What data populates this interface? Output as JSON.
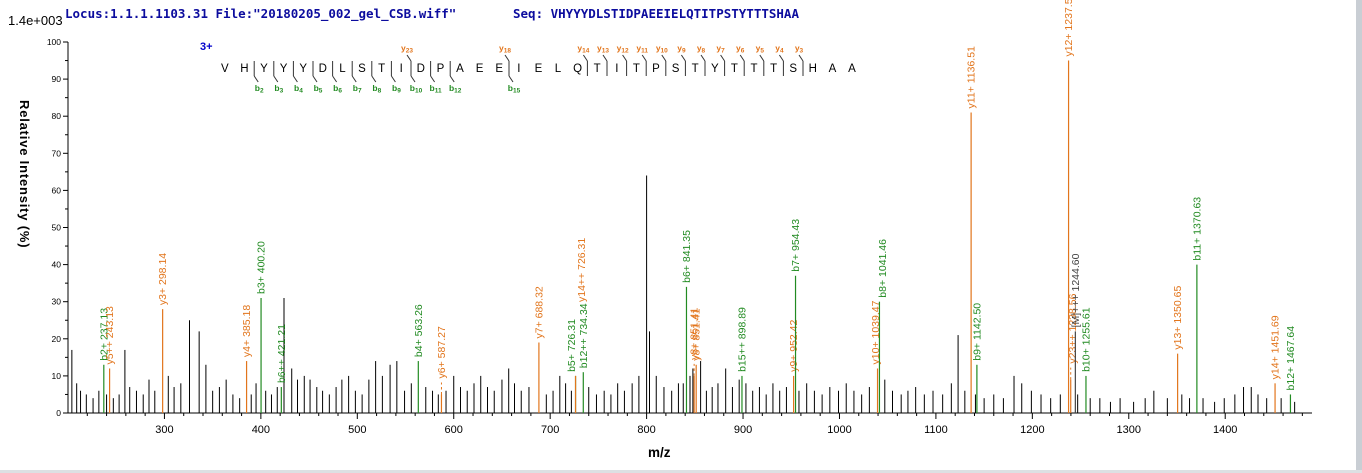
{
  "header": {
    "locus_file": "Locus:1.1.1.1103.31 File:\"20180205_002_gel_CSB.wiff\"",
    "seq_label": "Seq: VHYYYDLSTIDPAEEIELQTITPSTYTTTSHAA"
  },
  "y_axis": {
    "title": "Relative  Intensity  (%)",
    "max_label": "1.4e+003"
  },
  "x_axis": {
    "title": "m/z"
  },
  "colors": {
    "y_ion": "#e2751c",
    "b_ion": "#228b22",
    "m_ion": "#444444",
    "header_blue": "#0c0c9e",
    "charge_blue": "#0000cc",
    "axis": "#000000",
    "unlabeled_peak": "#000000"
  },
  "sequence": {
    "residues": "VHYYYDLSTIDPAEEIELQTITPSTYTTTSHAA",
    "precursor_charge": "3+",
    "y_ticks": [
      {
        "n": 23,
        "after": 10
      },
      {
        "n": 18,
        "after": 15
      },
      {
        "n": 14,
        "after": 19
      },
      {
        "n": 13,
        "after": 20
      },
      {
        "n": 12,
        "after": 21
      },
      {
        "n": 11,
        "after": 22
      },
      {
        "n": 10,
        "after": 23
      },
      {
        "n": 9,
        "after": 24
      },
      {
        "n": 8,
        "after": 25
      },
      {
        "n": 7,
        "after": 26
      },
      {
        "n": 6,
        "after": 27
      },
      {
        "n": 5,
        "after": 28
      },
      {
        "n": 4,
        "after": 29
      },
      {
        "n": 3,
        "after": 30
      }
    ],
    "b_ticks": [
      {
        "n": 2,
        "after": 2
      },
      {
        "n": 3,
        "after": 3
      },
      {
        "n": 4,
        "after": 4
      },
      {
        "n": 5,
        "after": 5
      },
      {
        "n": 6,
        "after": 6
      },
      {
        "n": 7,
        "after": 7
      },
      {
        "n": 8,
        "after": 8
      },
      {
        "n": 9,
        "after": 9
      },
      {
        "n": 10,
        "after": 10
      },
      {
        "n": 11,
        "after": 11
      },
      {
        "n": 12,
        "after": 12
      },
      {
        "n": 15,
        "after": 15
      }
    ]
  },
  "chart_data": {
    "type": "bar",
    "title": "",
    "xlabel": "m/z",
    "ylabel": "Relative Intensity (%)",
    "xlim": [
      200,
      1490
    ],
    "ylim": [
      0,
      100
    ],
    "x_major_ticks": [
      300,
      400,
      500,
      600,
      700,
      800,
      900,
      1000,
      1100,
      1200,
      1300,
      1400
    ],
    "x_minor_step": 20,
    "y_major_step": 10,
    "y_minor_step": 5,
    "annotated_peaks": [
      {
        "label": "b2+ 237.13",
        "series": "b",
        "mz": 237.13,
        "intensity": 13
      },
      {
        "label": "y5++ 243.13",
        "series": "y",
        "mz": 243.13,
        "intensity": 12
      },
      {
        "label": "y3+ 298.14",
        "series": "y",
        "mz": 298.14,
        "intensity": 28
      },
      {
        "label": "y4+ 385.18",
        "series": "y",
        "mz": 385.18,
        "intensity": 14
      },
      {
        "label": "b3+ 400.20",
        "series": "b",
        "mz": 400.2,
        "intensity": 31
      },
      {
        "label": "b6++ 421.21",
        "series": "b",
        "mz": 421.21,
        "intensity": 7
      },
      {
        "label": "b4+ 563.26",
        "series": "b",
        "mz": 563.26,
        "intensity": 14
      },
      {
        "label": "y6+ 587.27",
        "series": "y",
        "mz": 587.27,
        "intensity": 5,
        "dashed": true
      },
      {
        "label": "y7+ 688.32",
        "series": "y",
        "mz": 688.32,
        "intensity": 19
      },
      {
        "label": "b5+ 726.31",
        "series": "b",
        "mz": 726.31,
        "intensity": 10,
        "label_dx": -4
      },
      {
        "label": "y14++ 726.31",
        "series": "y",
        "mz": 726.31,
        "intensity": 10,
        "label_dx": 6,
        "label_y": 302
      },
      {
        "label": "b12++ 734.34",
        "series": "b",
        "mz": 734.34,
        "intensity": 11
      },
      {
        "label": "b6+ 841.35",
        "series": "b",
        "mz": 841.35,
        "intensity": 34
      },
      {
        "label": "y8+ 851.41",
        "series": "y",
        "mz": 849.3,
        "intensity": 10,
        "dashed": true
      },
      {
        "label": "y8+ 851.41",
        "series": "y",
        "mz": 851.41,
        "intensity": 13
      },
      {
        "label": "b15++ 898.89",
        "series": "b",
        "mz": 898.89,
        "intensity": 10
      },
      {
        "label": "y9+ 952.42",
        "series": "y",
        "mz": 952.42,
        "intensity": 10
      },
      {
        "label": "b7+ 954.43",
        "series": "b",
        "mz": 954.43,
        "intensity": 37
      },
      {
        "label": "y10+ 1039.47",
        "series": "y",
        "mz": 1039.47,
        "intensity": 12,
        "label_dx": -2
      },
      {
        "label": "b8+ 1041.46",
        "series": "b",
        "mz": 1041.46,
        "intensity": 30,
        "label_dx": 3
      },
      {
        "label": "y11+ 1136.51",
        "series": "y",
        "mz": 1136.51,
        "intensity": 81
      },
      {
        "label": "b9+ 1142.50",
        "series": "b",
        "mz": 1142.5,
        "intensity": 13
      },
      {
        "label": "y12+ 1237.57",
        "series": "y",
        "mz": 1237.57,
        "intensity": 95
      },
      {
        "label": "y23++ 1238.56",
        "series": "y",
        "mz": 1239.8,
        "intensity": 9,
        "dashed": true,
        "label_dx": 2
      },
      {
        "label": "[M]+++ 1244.60",
        "series": "M",
        "mz": 1244.6,
        "intensity": 22
      },
      {
        "label": "b10+ 1255.61",
        "series": "b",
        "mz": 1255.61,
        "intensity": 10
      },
      {
        "label": "y13+ 1350.65",
        "series": "y",
        "mz": 1350.65,
        "intensity": 16
      },
      {
        "label": "b11+ 1370.63",
        "series": "b",
        "mz": 1370.63,
        "intensity": 40
      },
      {
        "label": "y14+ 1451.69",
        "series": "y",
        "mz": 1451.69,
        "intensity": 8
      },
      {
        "label": "b12+ 1467.64",
        "series": "b",
        "mz": 1467.64,
        "intensity": 5
      }
    ],
    "unlabeled_peaks": [
      [
        204,
        17
      ],
      [
        209,
        8
      ],
      [
        213,
        6
      ],
      [
        219,
        5
      ],
      [
        226,
        4
      ],
      [
        232,
        6
      ],
      [
        240,
        5
      ],
      [
        247,
        4
      ],
      [
        253,
        5
      ],
      [
        259,
        17
      ],
      [
        264,
        7
      ],
      [
        271,
        6
      ],
      [
        278,
        5
      ],
      [
        284,
        9
      ],
      [
        290,
        6
      ],
      [
        304,
        10
      ],
      [
        310,
        7
      ],
      [
        317,
        8
      ],
      [
        326,
        25
      ],
      [
        336,
        22
      ],
      [
        343,
        13
      ],
      [
        350,
        6
      ],
      [
        357,
        7
      ],
      [
        364,
        9
      ],
      [
        371,
        5
      ],
      [
        378,
        4
      ],
      [
        390,
        5
      ],
      [
        395,
        8
      ],
      [
        405,
        6
      ],
      [
        411,
        5
      ],
      [
        417,
        7
      ],
      [
        424,
        31
      ],
      [
        432,
        12
      ],
      [
        438,
        9
      ],
      [
        445,
        10
      ],
      [
        451,
        9
      ],
      [
        458,
        7
      ],
      [
        464,
        6
      ],
      [
        471,
        5
      ],
      [
        478,
        7
      ],
      [
        484,
        9
      ],
      [
        491,
        10
      ],
      [
        498,
        6
      ],
      [
        505,
        5
      ],
      [
        512,
        9
      ],
      [
        519,
        14
      ],
      [
        526,
        10
      ],
      [
        534,
        13
      ],
      [
        541,
        14
      ],
      [
        549,
        6
      ],
      [
        556,
        8
      ],
      [
        571,
        7
      ],
      [
        578,
        6
      ],
      [
        584,
        5
      ],
      [
        592,
        6
      ],
      [
        600,
        10
      ],
      [
        607,
        7
      ],
      [
        614,
        6
      ],
      [
        621,
        8
      ],
      [
        628,
        10
      ],
      [
        635,
        7
      ],
      [
        642,
        6
      ],
      [
        650,
        9
      ],
      [
        657,
        12
      ],
      [
        663,
        8
      ],
      [
        670,
        6
      ],
      [
        678,
        7
      ],
      [
        696,
        5
      ],
      [
        703,
        6
      ],
      [
        710,
        10
      ],
      [
        716,
        8
      ],
      [
        722,
        6
      ],
      [
        740,
        7
      ],
      [
        748,
        5
      ],
      [
        756,
        6
      ],
      [
        763,
        5
      ],
      [
        770,
        8
      ],
      [
        777,
        6
      ],
      [
        785,
        8
      ],
      [
        792,
        10
      ],
      [
        800,
        64
      ],
      [
        803,
        22
      ],
      [
        810,
        10
      ],
      [
        818,
        7
      ],
      [
        826,
        6
      ],
      [
        833,
        8
      ],
      [
        838,
        8
      ],
      [
        845,
        10
      ],
      [
        848,
        12
      ],
      [
        856,
        14
      ],
      [
        862,
        6
      ],
      [
        868,
        7
      ],
      [
        874,
        8
      ],
      [
        882,
        12
      ],
      [
        889,
        7
      ],
      [
        896,
        9
      ],
      [
        903,
        8
      ],
      [
        910,
        6
      ],
      [
        917,
        7
      ],
      [
        924,
        5
      ],
      [
        931,
        8
      ],
      [
        938,
        6
      ],
      [
        945,
        7
      ],
      [
        958,
        6
      ],
      [
        966,
        8
      ],
      [
        974,
        6
      ],
      [
        982,
        5
      ],
      [
        990,
        7
      ],
      [
        999,
        6
      ],
      [
        1007,
        8
      ],
      [
        1015,
        6
      ],
      [
        1023,
        5
      ],
      [
        1031,
        7
      ],
      [
        1047,
        9
      ],
      [
        1055,
        6
      ],
      [
        1064,
        5
      ],
      [
        1071,
        6
      ],
      [
        1079,
        7
      ],
      [
        1088,
        5
      ],
      [
        1097,
        6
      ],
      [
        1107,
        5
      ],
      [
        1116,
        8
      ],
      [
        1123,
        21
      ],
      [
        1130,
        6
      ],
      [
        1141,
        5
      ],
      [
        1150,
        4
      ],
      [
        1160,
        5
      ],
      [
        1170,
        4
      ],
      [
        1181,
        10
      ],
      [
        1189,
        8
      ],
      [
        1199,
        6
      ],
      [
        1209,
        5
      ],
      [
        1219,
        4
      ],
      [
        1229,
        5
      ],
      [
        1247,
        5
      ],
      [
        1260,
        4
      ],
      [
        1270,
        4
      ],
      [
        1281,
        3
      ],
      [
        1291,
        4
      ],
      [
        1305,
        3
      ],
      [
        1317,
        4
      ],
      [
        1326,
        6
      ],
      [
        1340,
        4
      ],
      [
        1355,
        5
      ],
      [
        1363,
        4
      ],
      [
        1377,
        4
      ],
      [
        1389,
        3
      ],
      [
        1399,
        4
      ],
      [
        1410,
        5
      ],
      [
        1419,
        7
      ],
      [
        1427,
        7
      ],
      [
        1434,
        5
      ],
      [
        1443,
        4
      ],
      [
        1458,
        4
      ],
      [
        1472,
        3
      ]
    ]
  }
}
